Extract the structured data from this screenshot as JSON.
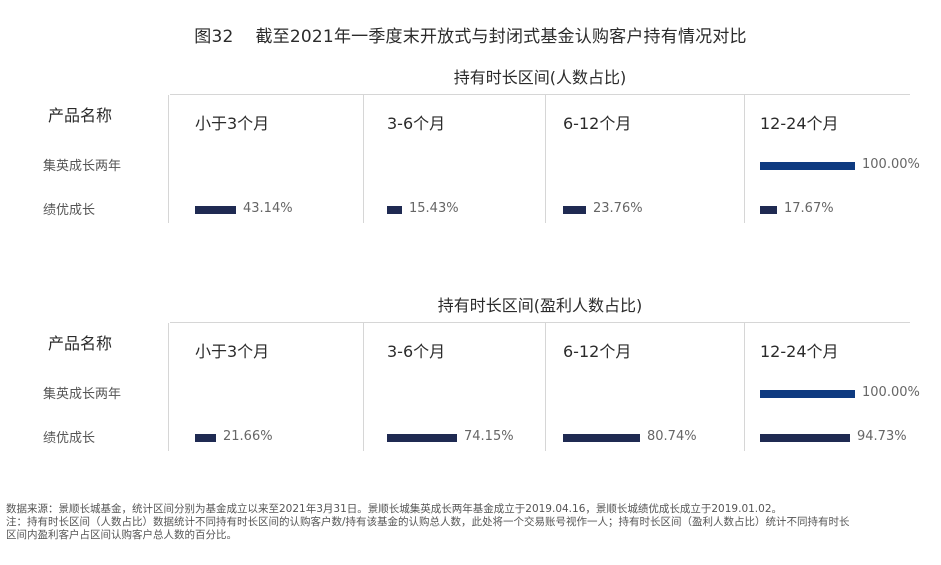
{
  "title": {
    "fig": "图32",
    "text": "截至2021年一季度末开放式与封闭式基金认购客户持有情况对比"
  },
  "product_header": "产品名称",
  "columns": [
    "小于3个月",
    "3-6个月",
    "6-12个月",
    "12-24个月"
  ],
  "rows": [
    "集英成长两年",
    "绩优成长"
  ],
  "colors": {
    "light_navy": "#1f2a52",
    "strong_blue": "#0e3a80"
  },
  "chart_data": [
    {
      "type": "bar",
      "title": "持有时长区间(人数占比)",
      "categories": [
        "小于3个月",
        "3-6个月",
        "6-12个月",
        "12-24个月"
      ],
      "series": [
        {
          "name": "集英成长两年",
          "values": [
            null,
            null,
            null,
            100.0
          ]
        },
        {
          "name": "绩优成长",
          "values": [
            43.14,
            15.43,
            23.76,
            17.67
          ]
        }
      ],
      "labels": [
        [
          "",
          "",
          "",
          "100.00%"
        ],
        [
          "43.14%",
          "15.43%",
          "23.76%",
          "17.67%"
        ]
      ],
      "unit": "%"
    },
    {
      "type": "bar",
      "title": "持有时长区间(盈利人数占比)",
      "categories": [
        "小于3个月",
        "3-6个月",
        "6-12个月",
        "12-24个月"
      ],
      "series": [
        {
          "name": "集英成长两年",
          "values": [
            null,
            null,
            null,
            100.0
          ]
        },
        {
          "name": "绩优成长",
          "values": [
            21.66,
            74.15,
            80.74,
            94.73
          ]
        }
      ],
      "labels": [
        [
          "",
          "",
          "",
          "100.00%"
        ],
        [
          "21.66%",
          "74.15%",
          "80.74%",
          "94.73%"
        ]
      ],
      "unit": "%"
    }
  ],
  "footnote": [
    "数据来源：景顺长城基金，统计区间分别为基金成立以来至2021年3月31日。景顺长城集英成长两年基金成立于2019.04.16，景顺长城绩优成长成立于2019.01.02。",
    "注：持有时长区间（人数占比）数据统计不同持有时长区间的认购客户数/持有该基金的认购总人数，此处将一个交易账号视作一人；持有时长区间（盈利人数占比）统计不同持有时长",
    "区间内盈利客户占区间认购客户总人数的百分比。"
  ]
}
